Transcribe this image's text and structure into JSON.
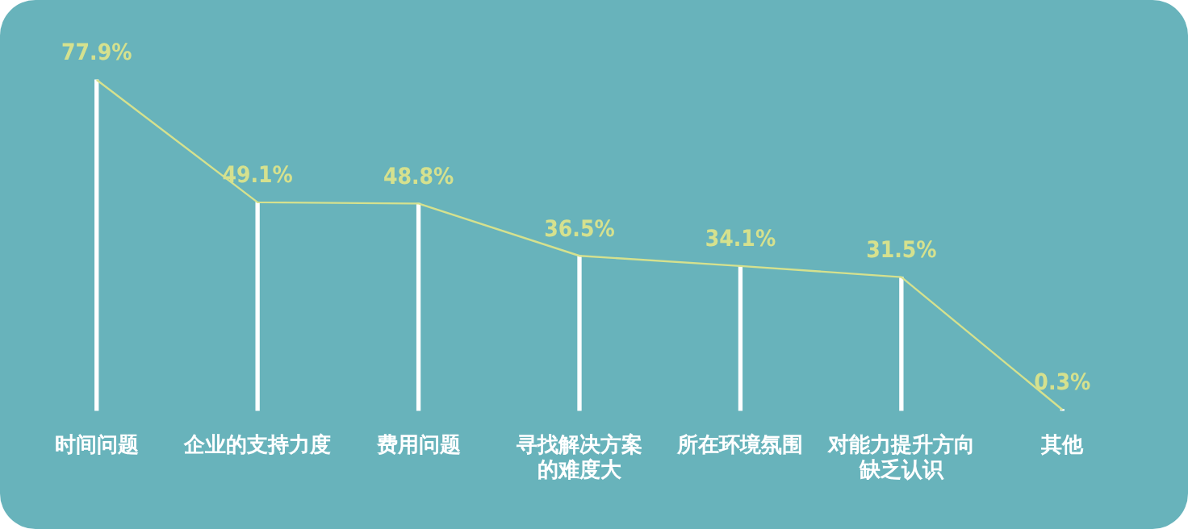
{
  "chart_data": {
    "type": "bar",
    "categories": [
      "时间问题",
      "企业的支持力度",
      "费用问题",
      "寻找解决方案的难度大",
      "所在环境氛围",
      "对能力提升方向缺乏认识",
      "其他"
    ],
    "series": [
      {
        "color": "#ffffff",
        "values": [
          77.9,
          49.1,
          48.8,
          36.5,
          34.1,
          31.5,
          0.3
        ]
      },
      {
        "type": "line",
        "color": "#d5e18e",
        "values": [
          77.9,
          49.1,
          48.8,
          36.5,
          34.1,
          31.5,
          0.3
        ],
        "value_labels": [
          "77.9%",
          "49.1%",
          "48.8%",
          "36.5%",
          "34.1%",
          "31.5%",
          "0.3%"
        ]
      }
    ],
    "legend": false,
    "grid": false,
    "marker": "none"
  }
}
